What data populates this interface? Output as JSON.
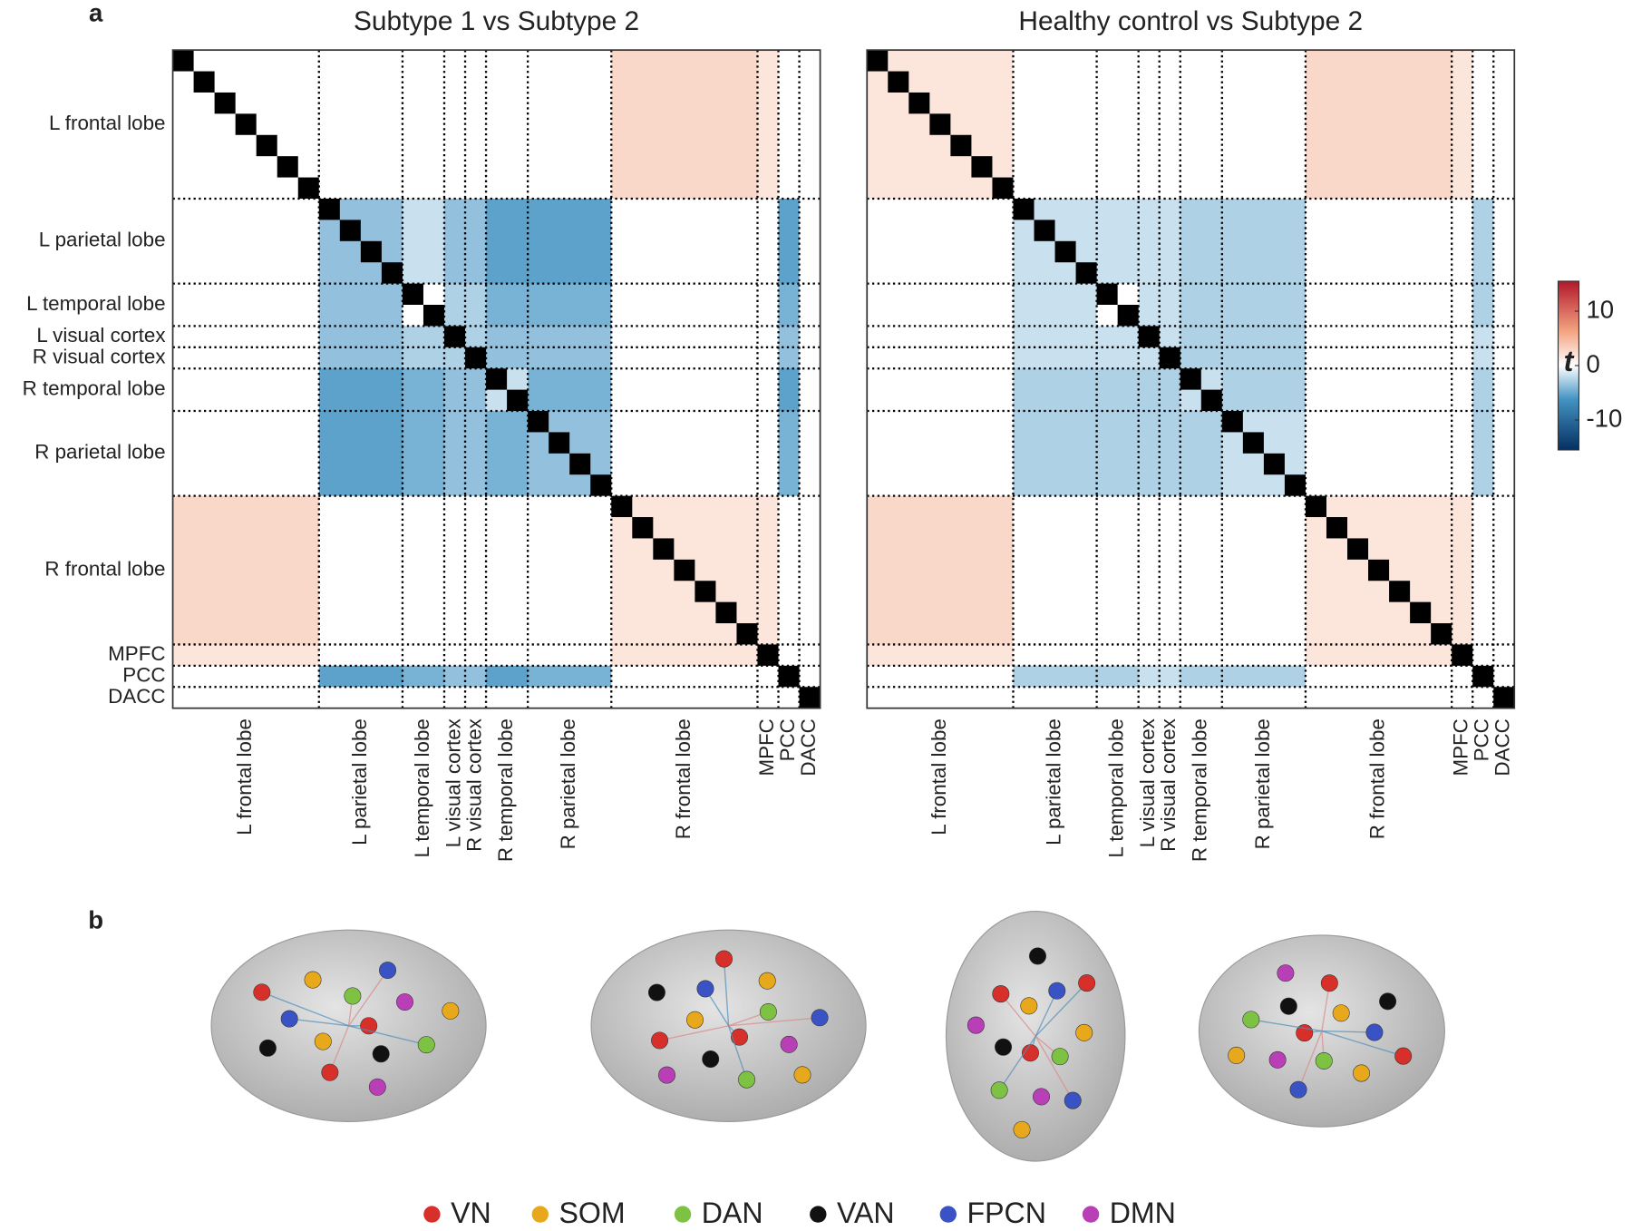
{
  "panel_labels": [
    "a",
    "b"
  ],
  "chart_data": [
    {
      "type": "heatmap",
      "title": "Subtype 1 vs Subtype 2",
      "show_y_labels": true,
      "labels": [
        "L frontal lobe",
        "L parietal lobe",
        "L temporal lobe",
        "L visual cortex",
        "R visual cortex",
        "R temporal lobe",
        "R parietal lobe",
        "R frontal lobe",
        "MPFC",
        "PCC",
        "DACC"
      ],
      "values": [
        [
          1,
          0,
          0,
          0,
          0,
          0,
          0,
          3,
          2,
          0,
          1
        ],
        [
          0,
          -4,
          -2,
          -4,
          -4,
          -6,
          -6,
          0,
          0,
          -6,
          0
        ],
        [
          0,
          -4,
          -1,
          -3,
          -3,
          -5,
          -5,
          0,
          0,
          -5,
          0
        ],
        [
          0,
          -4,
          -3,
          0,
          -3,
          -4,
          -4,
          0,
          0,
          -4,
          0
        ],
        [
          0,
          -4,
          -3,
          -3,
          0,
          -4,
          -4,
          0,
          0,
          -4,
          0
        ],
        [
          0,
          -6,
          -5,
          -4,
          -4,
          -2,
          -5,
          -1,
          0,
          -6,
          -1
        ],
        [
          0,
          -6,
          -5,
          -4,
          -4,
          -5,
          -4,
          -1,
          0,
          -5,
          0
        ],
        [
          3,
          0,
          0,
          0,
          0,
          -1,
          -1,
          2,
          2,
          0,
          1
        ],
        [
          2,
          0,
          0,
          0,
          0,
          0,
          0,
          2,
          0,
          0,
          0
        ],
        [
          0,
          -6,
          -5,
          -4,
          -4,
          -6,
          -5,
          0,
          0,
          0,
          0
        ],
        [
          1,
          0,
          0,
          0,
          0,
          -1,
          0,
          1,
          0,
          0,
          0
        ]
      ]
    },
    {
      "type": "heatmap",
      "title": "Healthy control vs Subtype 2",
      "show_y_labels": false,
      "labels": [
        "L frontal lobe",
        "L parietal lobe",
        "L temporal lobe",
        "L visual cortex",
        "R visual cortex",
        "R temporal lobe",
        "R parietal lobe",
        "R frontal lobe",
        "MPFC",
        "PCC",
        "DACC"
      ],
      "values": [
        [
          2,
          0,
          0,
          0,
          0,
          0,
          0,
          3,
          2,
          0,
          0
        ],
        [
          0,
          -2,
          -2,
          -2,
          -2,
          -3,
          -3,
          0,
          0,
          -3,
          0
        ],
        [
          0,
          -2,
          0,
          -2,
          -2,
          -3,
          -3,
          0,
          0,
          -3,
          0
        ],
        [
          0,
          -2,
          -2,
          0,
          -2,
          -3,
          -3,
          0,
          0,
          -2,
          0
        ],
        [
          0,
          -2,
          -2,
          -2,
          0,
          -3,
          -3,
          0,
          0,
          -2,
          0
        ],
        [
          0,
          -3,
          -3,
          -3,
          -3,
          -2,
          -3,
          0,
          0,
          -3,
          0
        ],
        [
          0,
          -3,
          -3,
          -3,
          -3,
          -3,
          -2,
          0,
          0,
          -3,
          0
        ],
        [
          3,
          0,
          0,
          0,
          0,
          0,
          0,
          2,
          2,
          0,
          1
        ],
        [
          2,
          0,
          0,
          0,
          0,
          0,
          0,
          2,
          0,
          0,
          0
        ],
        [
          0,
          -3,
          -3,
          -2,
          -2,
          -3,
          -3,
          0,
          0,
          0,
          0
        ],
        [
          0,
          0,
          0,
          0,
          0,
          0,
          0,
          1,
          0,
          0,
          0
        ]
      ],
      "colorbar": {
        "label": "t",
        "lim": [
          -15.5,
          15.5
        ],
        "ticks": [
          10,
          0,
          -10
        ]
      }
    }
  ],
  "panel_b": {
    "legend": [
      {
        "label": "VN",
        "color": "#d7302a"
      },
      {
        "label": "SOM",
        "color": "#e8a81c"
      },
      {
        "label": "DAN",
        "color": "#7dc242"
      },
      {
        "label": "VAN",
        "color": "#111111"
      },
      {
        "label": "FPCN",
        "color": "#3953c4"
      },
      {
        "label": "DMN",
        "color": "#b83fb6"
      }
    ]
  }
}
